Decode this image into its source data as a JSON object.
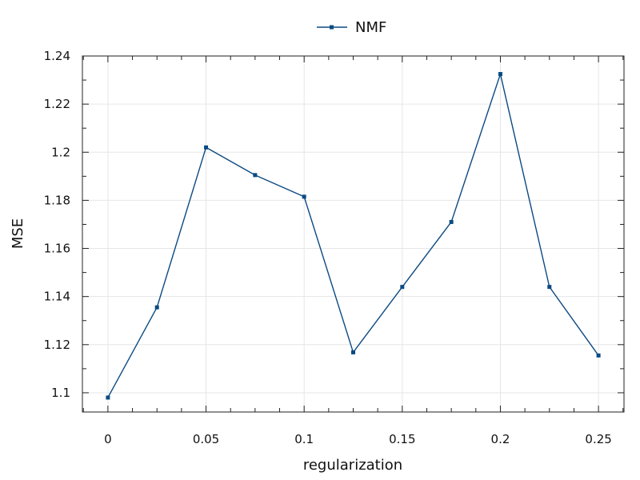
{
  "chart_data": {
    "type": "line",
    "title": "",
    "xlabel": "regularization",
    "ylabel": "MSE",
    "xlim": [
      -0.013,
      0.263
    ],
    "ylim": [
      1.092,
      1.24
    ],
    "grid": true,
    "legend": {
      "position": "top-center",
      "entries": [
        "NMF"
      ]
    },
    "x_ticks": [
      0,
      0.05,
      0.1,
      0.15,
      0.2,
      0.25
    ],
    "x_tick_labels": [
      "0",
      "0.05",
      "0.1",
      "0.15",
      "0.2",
      "0.25"
    ],
    "y_ticks": [
      1.1,
      1.12,
      1.14,
      1.16,
      1.18,
      1.2,
      1.22,
      1.24
    ],
    "y_tick_labels": [
      "1.1",
      "1.12",
      "1.14",
      "1.16",
      "1.18",
      "1.2",
      "1.22",
      "1.24"
    ],
    "series": [
      {
        "name": "NMF",
        "color": "#0b4a82",
        "marker": "square",
        "x": [
          0,
          0.025,
          0.05,
          0.075,
          0.1,
          0.125,
          0.15,
          0.175,
          0.2,
          0.225,
          0.25
        ],
        "y": [
          1.098,
          1.1355,
          1.202,
          1.1905,
          1.1815,
          1.1168,
          1.144,
          1.171,
          1.2325,
          1.144,
          1.1155
        ]
      }
    ]
  }
}
